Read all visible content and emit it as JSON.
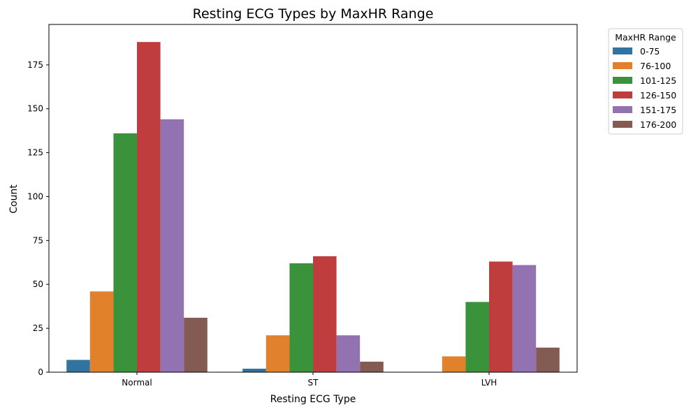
{
  "chart_data": {
    "type": "bar",
    "title": "Resting ECG Types by MaxHR Range",
    "xlabel": "Resting ECG Type",
    "ylabel": "Count",
    "categories": [
      "Normal",
      "ST",
      "LVH"
    ],
    "ylim": [
      0,
      198
    ],
    "yticks": [
      0,
      25,
      50,
      75,
      100,
      125,
      150,
      175
    ],
    "grid": false,
    "legend": {
      "title": "MaxHR Range",
      "placement": "outside-top-right"
    },
    "series": [
      {
        "name": "0-75",
        "color": "#3274a1",
        "values": [
          7,
          2,
          0
        ]
      },
      {
        "name": "76-100",
        "color": "#e1812c",
        "values": [
          46,
          21,
          9
        ]
      },
      {
        "name": "101-125",
        "color": "#3a923a",
        "values": [
          136,
          62,
          40
        ]
      },
      {
        "name": "126-150",
        "color": "#c03d3e",
        "values": [
          188,
          66,
          63
        ]
      },
      {
        "name": "151-175",
        "color": "#9372b2",
        "values": [
          144,
          21,
          61
        ]
      },
      {
        "name": "176-200",
        "color": "#845b53",
        "values": [
          31,
          6,
          14
        ]
      }
    ]
  }
}
